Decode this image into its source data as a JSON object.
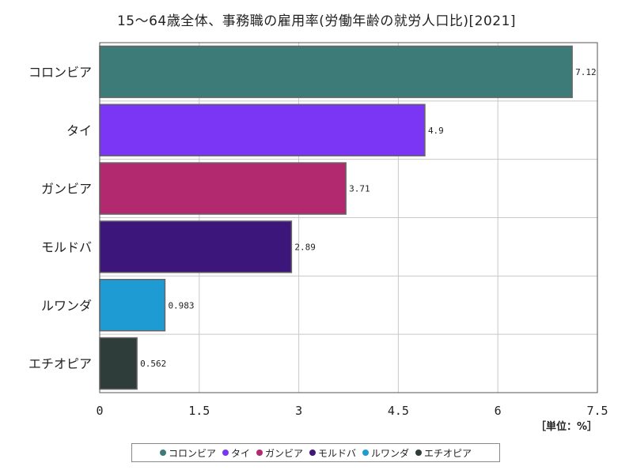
{
  "chart_data": {
    "type": "bar",
    "orientation": "horizontal",
    "title": "15～64歳全体、事務職の雇用率(労働年齢の就労人口比)[2021]",
    "unit": "［単位：%］",
    "categories": [
      "コロンビア",
      "タイ",
      "ガンビア",
      "モルドバ",
      "ルワンダ",
      "エチオピア"
    ],
    "values": [
      7.12,
      4.9,
      3.71,
      2.89,
      0.983,
      0.562
    ],
    "value_labels": [
      "7.12",
      "4.9",
      "3.71",
      "2.89",
      "0.983",
      "0.562"
    ],
    "colors": [
      "#3d7b78",
      "#7b35f5",
      "#b3296f",
      "#3c167a",
      "#1f9bd3",
      "#2f3d3a"
    ],
    "xlim": [
      0,
      7.5
    ],
    "xticks": [
      0,
      1.5,
      3,
      4.5,
      6,
      7.5
    ],
    "xtick_labels": [
      "0",
      "1.5",
      "3",
      "4.5",
      "6",
      "7.5"
    ],
    "grid": true,
    "legend_position": "bottom"
  }
}
